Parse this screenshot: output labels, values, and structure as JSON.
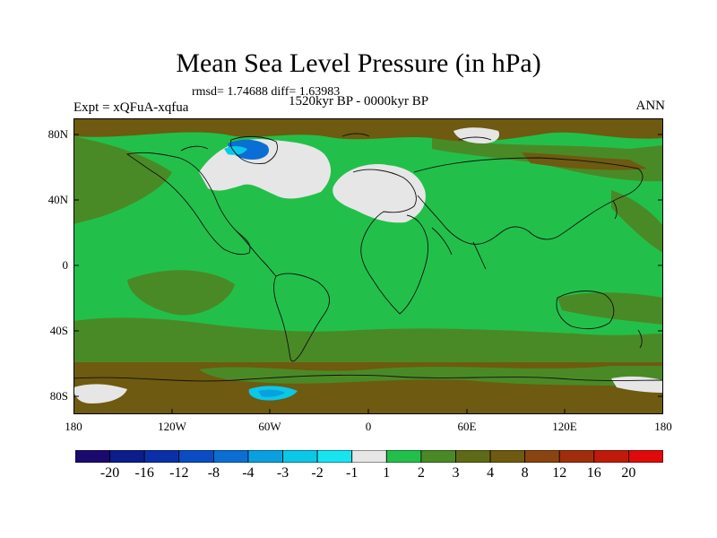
{
  "title": "Mean Sea Level Pressure (in hPa)",
  "stats": "rmsd= 1.74688 diff= 1.63983",
  "period": "1520kyr BP - 0000kyr BP",
  "experiment": "Expt = xQFuA-xqfua",
  "season": "ANN",
  "lat_labels": [
    "80N",
    "40N",
    "0",
    "40S",
    "80S"
  ],
  "lon_labels": [
    "180",
    "120W",
    "60W",
    "0",
    "60E",
    "120E",
    "180"
  ],
  "colorbar": {
    "labels": [
      "-20",
      "-16",
      "-12",
      "-8",
      "-4",
      "-3",
      "-2",
      "-1",
      "1",
      "2",
      "3",
      "4",
      "8",
      "12",
      "16",
      "20"
    ],
    "colors": [
      "#1a0a6e",
      "#0c1c8c",
      "#0a2fa8",
      "#0a4cc4",
      "#0a6ed4",
      "#0aa0e0",
      "#0ac8e6",
      "#18e4f0",
      "#e6e6e6",
      "#22c04a",
      "#4a8a26",
      "#5e6a16",
      "#6e5a10",
      "#8a4410",
      "#a02e0c",
      "#c01a0a",
      "#e00a0a"
    ]
  },
  "chart_data": {
    "type": "heatmap",
    "title": "Mean Sea Level Pressure (in hPa)",
    "subtitle": "1520kyr BP - 0000kyr BP",
    "field": "MSLP difference",
    "units": "hPa",
    "projection": "cylindrical equidistant",
    "lon_range": [
      -180,
      180
    ],
    "lat_range": [
      -90,
      90
    ],
    "dominant_interval": "1 to 2",
    "contour_levels": [
      -20,
      -16,
      -12,
      -8,
      -4,
      -3,
      -2,
      -1,
      1,
      2,
      3,
      4,
      8,
      12,
      16,
      20
    ]
  },
  "icons": {
    "map": "world-coastline-map",
    "colorbar": "colorbar"
  }
}
